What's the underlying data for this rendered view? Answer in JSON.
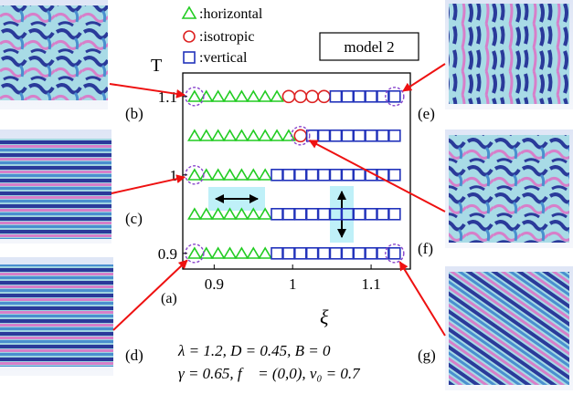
{
  "legend": {
    "entries": [
      {
        "marker": "triangle",
        "color": "#22cc22",
        "label": ":horizontal"
      },
      {
        "marker": "circle",
        "color": "#dd2222",
        "label": ":isotropic"
      },
      {
        "marker": "square",
        "color": "#2233bb",
        "label": ":vertical"
      }
    ]
  },
  "model_label": "model 2",
  "panel_labels": {
    "a": "(a)",
    "b": "(b)",
    "c": "(c)",
    "d": "(d)",
    "e": "(e)",
    "f": "(f)",
    "g": "(g)"
  },
  "parameters": {
    "line1": "λ = 1.2, D = 0.45, B = 0",
    "line2": "γ = 0.65, f⃗ = (0,0), v₀ = 0.7"
  },
  "colors": {
    "horizontal": "#22cc22",
    "isotropic": "#dd2222",
    "vertical": "#2233bb",
    "highlight_circle": "#8844cc",
    "arrow": "#ee1111",
    "arrow_box": "#bff0f8"
  },
  "chart_data": {
    "type": "scatter",
    "xlabel": "ξ",
    "ylabel": "T",
    "xlim": [
      0.86,
      1.15
    ],
    "ylim": [
      0.88,
      1.13
    ],
    "x_ticks": [
      {
        "value": 0.9,
        "label": "0.9"
      },
      {
        "value": 1.0,
        "label": "1"
      },
      {
        "value": 1.1,
        "label": "1.1"
      }
    ],
    "y_ticks": [
      {
        "value": 0.9,
        "label": "0.9"
      },
      {
        "value": 1.0,
        "label": "1"
      },
      {
        "value": 1.1,
        "label": "1.1"
      }
    ],
    "x": [
      0.875,
      0.89,
      0.905,
      0.92,
      0.935,
      0.95,
      0.965,
      0.98,
      0.995,
      1.01,
      1.025,
      1.04,
      1.055,
      1.07,
      1.085,
      1.1,
      1.115,
      1.13
    ],
    "rows": [
      {
        "T": 1.1,
        "phases": [
          "h",
          "h",
          "h",
          "h",
          "h",
          "h",
          "h",
          "h",
          "i",
          "i",
          "i",
          "i",
          "v",
          "v",
          "v",
          "v",
          "v",
          "v"
        ]
      },
      {
        "T": 1.05,
        "phases": [
          "h",
          "h",
          "h",
          "h",
          "h",
          "h",
          "h",
          "h",
          "h",
          "i",
          "v",
          "v",
          "v",
          "v",
          "v",
          "v",
          "v",
          "v"
        ]
      },
      {
        "T": 1.0,
        "phases": [
          "h",
          "h",
          "h",
          "h",
          "h",
          "h",
          "h",
          "v",
          "v",
          "v",
          "v",
          "v",
          "v",
          "v",
          "v",
          "v",
          "v",
          "v"
        ]
      },
      {
        "T": 0.95,
        "phases": [
          "h",
          "h",
          "h",
          "h",
          "h",
          "h",
          "h",
          "v",
          "v",
          "v",
          "v",
          "v",
          "v",
          "v",
          "v",
          "v",
          "v",
          "v"
        ]
      },
      {
        "T": 0.9,
        "phases": [
          "h",
          "h",
          "h",
          "h",
          "h",
          "h",
          "h",
          "v",
          "v",
          "v",
          "v",
          "v",
          "v",
          "v",
          "v",
          "v",
          "v",
          "v"
        ]
      }
    ],
    "highlighted": [
      {
        "panel": "b",
        "x": 0.875,
        "T": 1.1
      },
      {
        "panel": "c",
        "x": 0.875,
        "T": 1.0
      },
      {
        "panel": "d",
        "x": 0.875,
        "T": 0.9
      },
      {
        "panel": "e",
        "x": 1.13,
        "T": 1.1
      },
      {
        "panel": "f",
        "x": 1.01,
        "T": 1.05
      },
      {
        "panel": "g",
        "x": 1.13,
        "T": 0.9
      }
    ]
  }
}
